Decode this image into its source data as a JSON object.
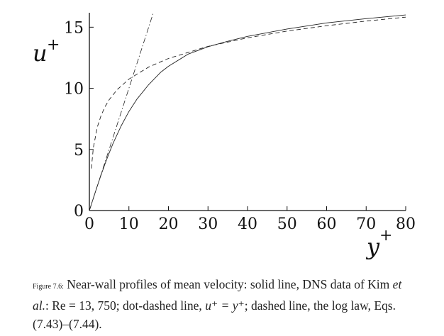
{
  "chart_data": {
    "type": "line",
    "xlabel": "y",
    "xlabel_sup": "+",
    "ylabel": "u",
    "ylabel_sup": "+",
    "xlim": [
      0,
      80
    ],
    "ylim": [
      0,
      17
    ],
    "x_ticks": [
      "0",
      "10",
      "20",
      "30",
      "40",
      "50",
      "60",
      "70",
      "80"
    ],
    "y_ticks": [
      "0",
      "5",
      "10",
      "15"
    ],
    "grid": false,
    "series": [
      {
        "style": "solid",
        "x": [
          0,
          1,
          2,
          3,
          4,
          5,
          6,
          7,
          8,
          10,
          12,
          15,
          18,
          20,
          25,
          30,
          35,
          40,
          50,
          60,
          70,
          80
        ],
        "y": [
          0,
          1.0,
          2.0,
          2.95,
          3.85,
          4.7,
          5.5,
          6.2,
          6.9,
          8.1,
          9.1,
          10.3,
          11.3,
          11.8,
          12.8,
          13.4,
          13.85,
          14.25,
          14.85,
          15.35,
          15.7,
          16.0
        ]
      },
      {
        "style": "dot-dashed",
        "x": [
          0,
          5,
          10,
          15,
          17
        ],
        "y": [
          0,
          5,
          10,
          15,
          17
        ]
      },
      {
        "style": "dashed",
        "x": [
          0.5,
          1,
          2,
          3,
          4,
          5,
          7,
          10,
          15,
          20,
          30,
          40,
          50,
          60,
          70,
          80
        ],
        "y": [
          3.44,
          5.13,
          6.82,
          7.81,
          8.51,
          9.06,
          9.88,
          10.75,
          11.74,
          12.44,
          13.43,
          14.13,
          14.68,
          15.12,
          15.5,
          15.82
        ]
      }
    ]
  },
  "caption": {
    "label": "Figure 7.6:",
    "part1": "Near-wall profiles of mean velocity: solid line, DNS data of Kim",
    "authors": "et al.",
    "part2": ": Re = 13, 750; dot-dashed line,",
    "math1": "u⁺ = y⁺",
    "part3": "; dashed line, the log law, Eqs. (7.43)–(7.44)."
  }
}
